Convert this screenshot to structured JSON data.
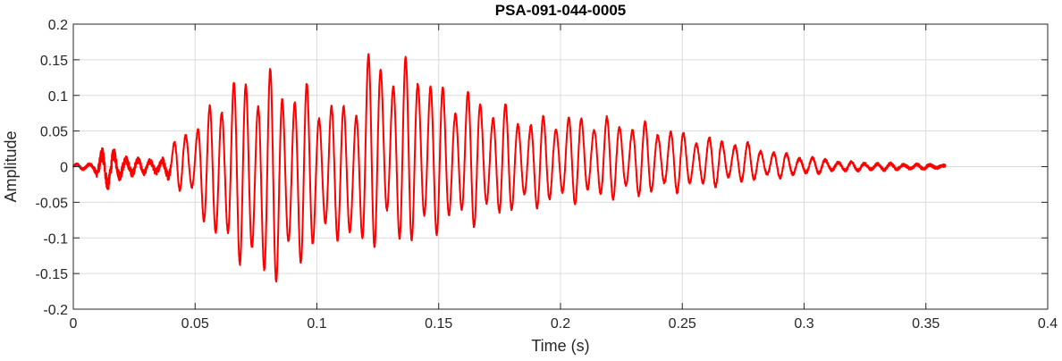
{
  "chart_data": {
    "type": "line",
    "title": "PSA-091-044-0005",
    "xlabel": "Time (s)",
    "ylabel": "Amplitude",
    "xlim": [
      0,
      0.4
    ],
    "ylim": [
      -0.2,
      0.2
    ],
    "x_ticks": [
      0,
      0.05,
      0.1,
      0.15,
      0.2,
      0.25,
      0.3,
      0.35,
      0.4
    ],
    "x_tick_labels": [
      "0",
      "0.05",
      "0.1",
      "0.15",
      "0.2",
      "0.25",
      "0.3",
      "0.35",
      "0.4"
    ],
    "y_ticks": [
      -0.2,
      -0.15,
      -0.1,
      -0.05,
      0,
      0.05,
      0.1,
      0.15,
      0.2
    ],
    "y_tick_labels": [
      "-0.2",
      "-0.15",
      "-0.1",
      "-0.05",
      "0",
      "0.05",
      "0.1",
      "0.15",
      "0.2"
    ],
    "grid": true,
    "series": [
      {
        "color": "#ff0000",
        "signal_end_s": 0.358,
        "envelope": {
          "t": [
            0,
            0.008,
            0.012,
            0.02,
            0.03,
            0.04,
            0.043,
            0.05,
            0.055,
            0.06,
            0.065,
            0.07,
            0.075,
            0.08,
            0.085,
            0.09,
            0.095,
            0.1,
            0.105,
            0.11,
            0.115,
            0.12,
            0.125,
            0.13,
            0.135,
            0.14,
            0.145,
            0.15,
            0.155,
            0.16,
            0.165,
            0.17,
            0.175,
            0.18,
            0.19,
            0.2,
            0.21,
            0.22,
            0.23,
            0.24,
            0.25,
            0.26,
            0.27,
            0.28,
            0.29,
            0.3,
            0.31,
            0.32,
            0.33,
            0.34,
            0.35,
            0.358
          ],
          "upper": [
            0.003,
            0.005,
            0.022,
            0.015,
            0.008,
            0.015,
            0.055,
            0.06,
            0.08,
            0.115,
            0.13,
            0.13,
            0.135,
            0.14,
            0.13,
            0.125,
            0.12,
            0.105,
            0.1,
            0.09,
            0.1,
            0.16,
            0.165,
            0.15,
            0.148,
            0.165,
            0.14,
            0.12,
            0.105,
            0.115,
            0.105,
            0.095,
            0.095,
            0.08,
            0.07,
            0.075,
            0.073,
            0.07,
            0.065,
            0.06,
            0.05,
            0.042,
            0.04,
            0.03,
            0.02,
            0.015,
            0.01,
            0.006,
            0.005,
            0.004,
            0.003,
            0.002
          ],
          "lower": [
            -0.003,
            -0.005,
            -0.028,
            -0.015,
            -0.008,
            -0.015,
            -0.035,
            -0.05,
            -0.09,
            -0.125,
            -0.13,
            -0.14,
            -0.168,
            -0.172,
            -0.165,
            -0.15,
            -0.14,
            -0.12,
            -0.11,
            -0.1,
            -0.13,
            -0.13,
            -0.11,
            -0.105,
            -0.115,
            -0.12,
            -0.11,
            -0.095,
            -0.09,
            -0.085,
            -0.085,
            -0.08,
            -0.075,
            -0.065,
            -0.06,
            -0.055,
            -0.05,
            -0.048,
            -0.045,
            -0.04,
            -0.035,
            -0.03,
            -0.025,
            -0.02,
            -0.016,
            -0.012,
            -0.008,
            -0.006,
            -0.005,
            -0.004,
            -0.003,
            -0.002
          ]
        },
        "frequency_hz": {
          "t": [
            0,
            0.01,
            0.04,
            0.08,
            0.12,
            0.16,
            0.2,
            0.25,
            0.3,
            0.358
          ],
          "f": [
            180,
            200,
            205,
            200,
            197,
            195,
            192,
            190,
            188,
            185
          ]
        }
      }
    ]
  }
}
